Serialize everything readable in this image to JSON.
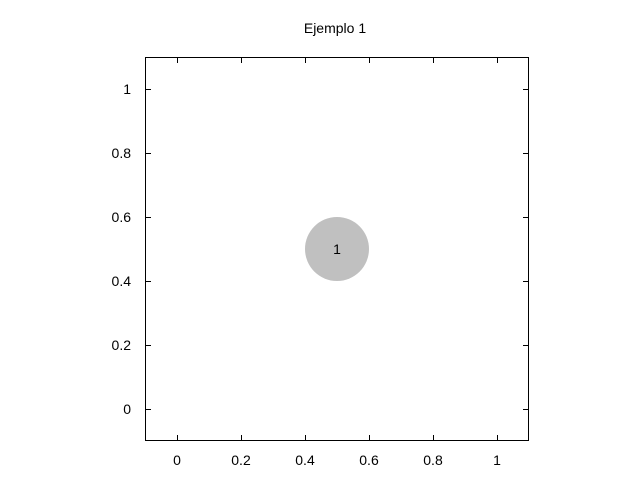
{
  "chart_data": {
    "type": "scatter",
    "title": "Ejemplo 1",
    "xlabel": "",
    "ylabel": "",
    "xlim": [
      -0.1,
      1.1
    ],
    "ylim": [
      -0.1,
      1.1
    ],
    "x_ticks": [
      0,
      0.2,
      0.4,
      0.6,
      0.8,
      1
    ],
    "x_tick_labels": [
      "0",
      "0.2",
      "0.4",
      "0.6",
      "0.8",
      "1"
    ],
    "y_ticks": [
      0,
      0.2,
      0.4,
      0.6,
      0.8,
      1
    ],
    "y_tick_labels": [
      "0",
      "0.2",
      "0.4",
      "0.6",
      "0.8",
      "1"
    ],
    "grid": false,
    "legend": "none",
    "points": [
      {
        "x": 0.5,
        "y": 0.5,
        "radius": 0.1,
        "label": "1",
        "color": "#c0c0c0"
      }
    ]
  }
}
